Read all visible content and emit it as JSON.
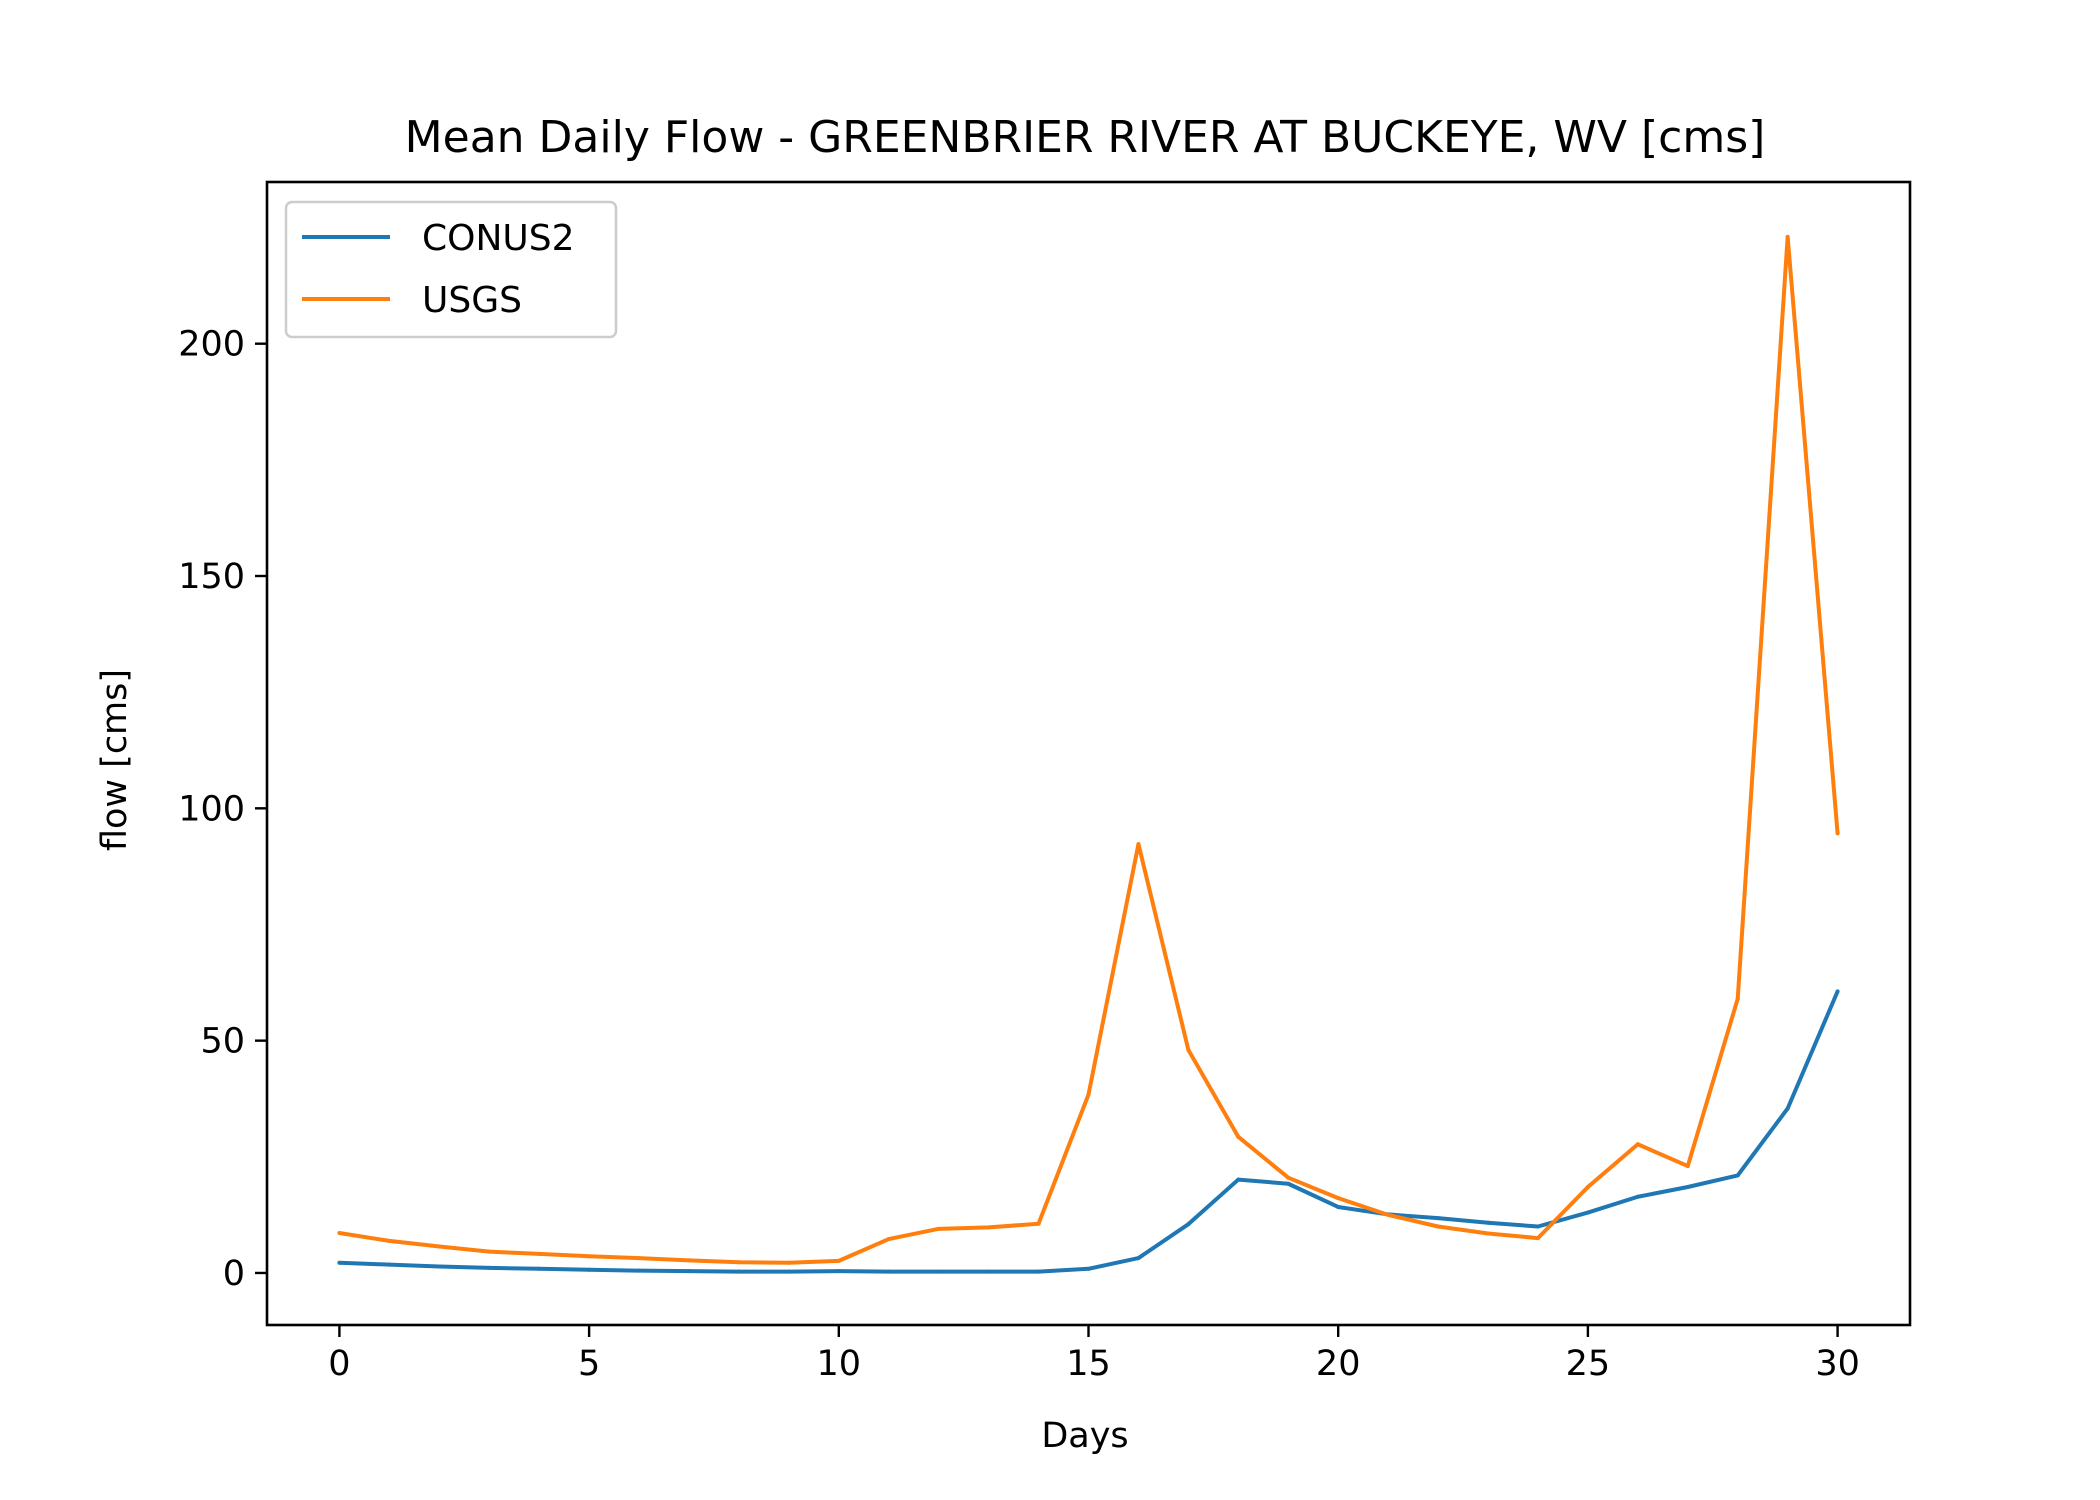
{
  "chart_data": {
    "type": "line",
    "title": "Mean Daily Flow - GREENBRIER RIVER AT BUCKEYE, WV [cms]",
    "xlabel": "Days",
    "ylabel": "flow [cms]",
    "xlim": [
      -1.45,
      31.45
    ],
    "ylim": [
      -11.2,
      234.8
    ],
    "xticks": [
      0,
      5,
      10,
      15,
      20,
      25,
      30
    ],
    "yticks": [
      0,
      50,
      100,
      150,
      200
    ],
    "grid": false,
    "legend_position": "upper-left",
    "x": [
      0,
      1,
      2,
      3,
      4,
      5,
      6,
      7,
      8,
      9,
      10,
      11,
      12,
      13,
      14,
      15,
      16,
      17,
      18,
      19,
      20,
      21,
      22,
      23,
      24,
      25,
      26,
      27,
      28,
      29,
      30
    ],
    "series": [
      {
        "name": "CONUS2",
        "color": "#1f77b4",
        "values": [
          2.2,
          1.8,
          1.4,
          1.1,
          0.9,
          0.7,
          0.5,
          0.4,
          0.3,
          0.3,
          0.4,
          0.3,
          0.3,
          0.3,
          0.3,
          0.9,
          3.2,
          10.5,
          20.1,
          19.2,
          14.2,
          12.6,
          11.8,
          10.8,
          10.0,
          13.0,
          16.4,
          18.5,
          21.0,
          35.4,
          60.6
        ]
      },
      {
        "name": "USGS",
        "color": "#ff7f0e",
        "values": [
          8.6,
          6.9,
          5.7,
          4.6,
          4.1,
          3.6,
          3.2,
          2.7,
          2.3,
          2.2,
          2.6,
          7.3,
          9.5,
          9.8,
          10.6,
          38.4,
          92.3,
          48.0,
          29.3,
          20.5,
          16.1,
          12.5,
          10.0,
          8.5,
          7.5,
          18.5,
          27.7,
          23.0,
          59.0,
          223.0,
          94.6
        ]
      }
    ]
  }
}
